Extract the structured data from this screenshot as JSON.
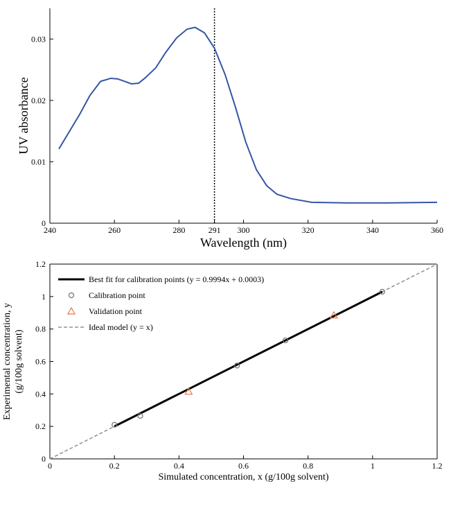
{
  "chart_data": [
    {
      "type": "line",
      "xlabel": "Wavelength (nm)",
      "ylabel": "UV absorbance",
      "x": [
        242.8,
        246,
        249.2,
        252.4,
        255.7,
        258.9,
        261,
        263.2,
        265.3,
        267.5,
        269.6,
        272.8,
        276,
        279.3,
        282.5,
        285,
        287.9,
        291,
        294.3,
        297.5,
        300.7,
        304,
        307.2,
        310.4,
        314.7,
        321.1,
        331.8,
        344.7,
        360
      ],
      "values": [
        0.0121,
        0.0149,
        0.0177,
        0.0208,
        0.0231,
        0.0236,
        0.0235,
        0.0231,
        0.0227,
        0.0228,
        0.0237,
        0.0253,
        0.0279,
        0.0302,
        0.0316,
        0.0319,
        0.031,
        0.0285,
        0.0242,
        0.0189,
        0.0132,
        0.0087,
        0.0061,
        0.0047,
        0.004,
        0.0034,
        0.0033,
        0.0033,
        0.0034
      ],
      "color": "#3355a5",
      "vline": 291,
      "xlim": [
        240,
        360
      ],
      "xticks": [
        240,
        260,
        280,
        291,
        300,
        320,
        340,
        360
      ],
      "ylim": [
        0,
        0.035
      ],
      "yticks": [
        0,
        0.01,
        0.02,
        0.03
      ]
    },
    {
      "type": "scatter",
      "xlabel": "Simulated concentration, x (g/100g solvent)",
      "ylabel": [
        "Experimental concentration, y",
        "(g/100g solvent)"
      ],
      "legend": "upper left",
      "series": [
        {
          "name": "Best fit for calibration points (y = 0.9994x + 0.0003)",
          "style": "solid",
          "color": "#000000",
          "x": [
            0.2,
            1.03
          ],
          "values": [
            0.2002,
            1.0297
          ]
        },
        {
          "name": "Calibration point",
          "style": "circle",
          "color": "#707070",
          "x": [
            0.2,
            0.28,
            0.58,
            0.73,
            1.03
          ],
          "values": [
            0.21,
            0.265,
            0.575,
            0.73,
            1.03
          ]
        },
        {
          "name": "Validation point",
          "style": "triangle",
          "color": "#e8774a",
          "x": [
            0.43,
            0.88
          ],
          "values": [
            0.415,
            0.885
          ]
        },
        {
          "name": "Ideal model (y = x)",
          "style": "dashed",
          "color": "#909090",
          "x": [
            0,
            1.2
          ],
          "values": [
            0,
            1.2
          ]
        }
      ],
      "xlim": [
        0,
        1.2
      ],
      "xticks": [
        0,
        0.2,
        0.4,
        0.6,
        0.8,
        1,
        1.2
      ],
      "ylim": [
        0,
        1.2
      ],
      "yticks": [
        0,
        0.2,
        0.4,
        0.6,
        0.8,
        1,
        1.2
      ]
    }
  ]
}
